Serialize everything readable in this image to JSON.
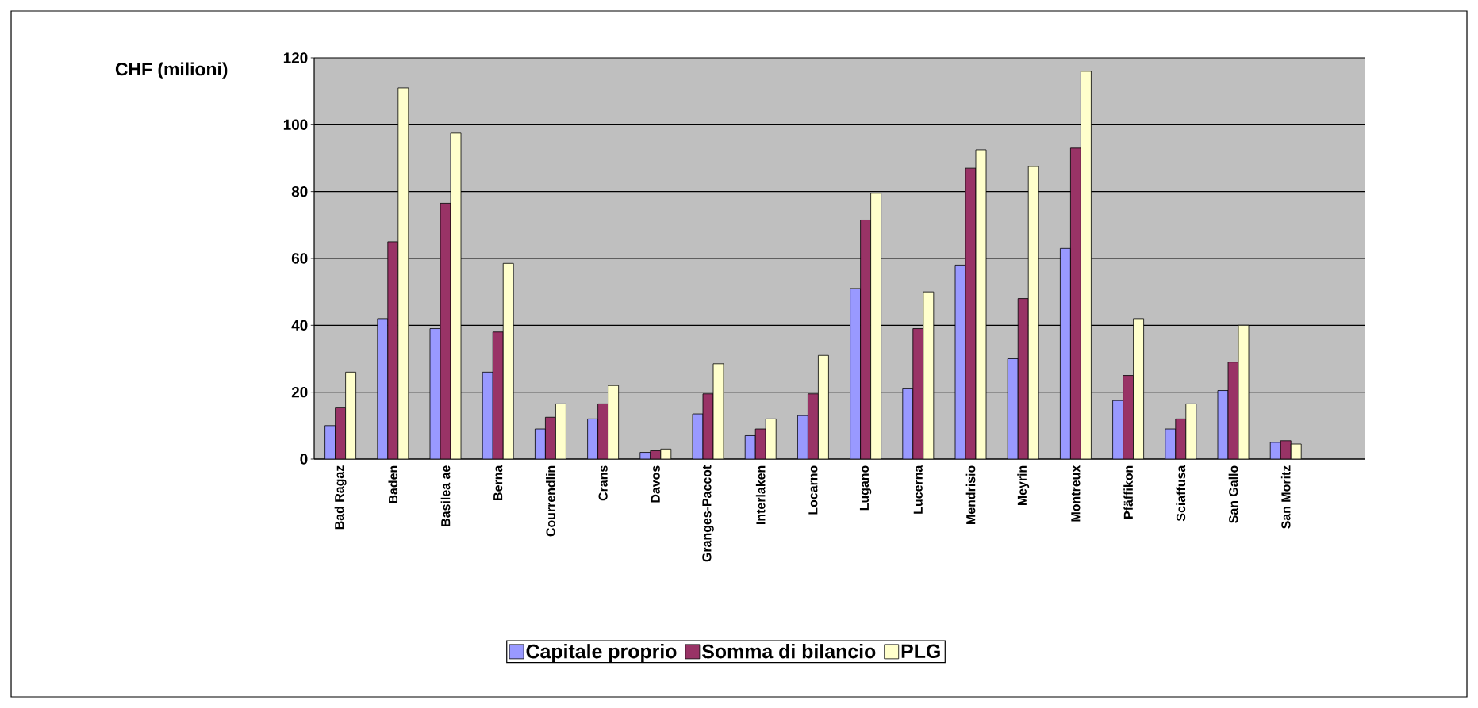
{
  "chart_data": {
    "type": "bar",
    "ylabel": "CHF (milioni)",
    "categories": [
      "Bad Ragaz",
      "Baden",
      "Basilea ae",
      "Berna",
      "Courrendlin",
      "Crans",
      "Davos",
      "Granges-Paccot",
      "Interlaken",
      "Locarno",
      "Lugano",
      "Lucerna",
      "Mendrisio",
      "Meyrin",
      "Montreux",
      "Pfäffikon",
      "Sciaffusa",
      "San Gallo",
      "San Moritz",
      null
    ],
    "series": [
      {
        "name": "Capitale proprio",
        "color": "#9999ff",
        "values": [
          10,
          42,
          39,
          26,
          9,
          12,
          2,
          13.5,
          7,
          13,
          51,
          21,
          58,
          30,
          63,
          17.5,
          9,
          20.5,
          5,
          null
        ]
      },
      {
        "name": "Somma di bilancio",
        "color": "#993366",
        "values": [
          15.5,
          65,
          76.5,
          38,
          12.5,
          16.5,
          2.5,
          19.5,
          9,
          19.5,
          71.5,
          39,
          87,
          48,
          93,
          25,
          12,
          29,
          5.5,
          null
        ]
      },
      {
        "name": "PLG",
        "color": "#ffffcc",
        "values": [
          26,
          111,
          97.5,
          58.5,
          16.5,
          22,
          3,
          28.5,
          12,
          31,
          79.5,
          50,
          92.5,
          87.5,
          116,
          42,
          16.5,
          40,
          4.5,
          null
        ]
      }
    ],
    "ylim": [
      0,
      120
    ],
    "yticks": [
      0,
      20,
      40,
      60,
      80,
      100,
      120
    ],
    "grid": "y",
    "legend": "bottom"
  }
}
